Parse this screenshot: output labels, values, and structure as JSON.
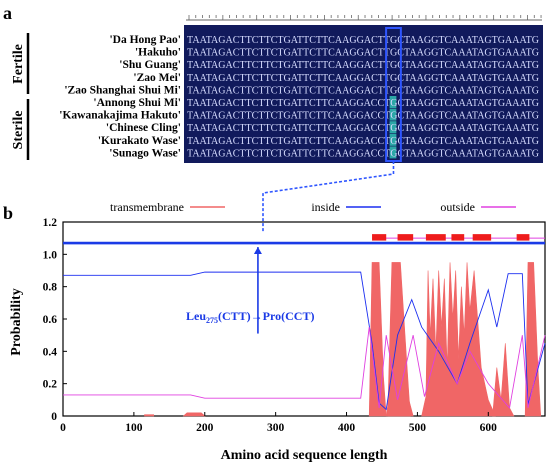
{
  "panel_a": {
    "label": "a",
    "groups": [
      {
        "name": "Fertile",
        "cultivars": [
          "'Da Hong Pao'",
          "'Hakuho'",
          "'Shu Guang'",
          "'Zao Mei'",
          "'Zao Shanghai Shui Mi'"
        ]
      },
      {
        "name": "Sterile",
        "cultivars": [
          "'Annong Shui Mi'",
          "'Kawanakajima Hakuto'",
          "'Chinese Cling'",
          "'Kurakato Wase'",
          "'Sunago Wase'"
        ]
      }
    ],
    "sequences": [
      "TAATAGACTTCTTCTGATTCTTCAAGGACTTGCTAAGGTCAAATAGTGAAATG",
      "TAATAGACTTCTTCTGATTCTTCAAGGACTTGCTAAGGTCAAATAGTGAAATG",
      "TAATAGACTTCTTCTGATTCTTCAAGGACTTGCTAAGGTCAAATAGTGAAATG",
      "TAATAGACTTCTTCTGATTCTTCAAGGACTTGCTAAGGTCAAATAGTGAAATG",
      "TAATAGACTTCTTCTGATTCTTCAAGGACTTGCTAAGGTCAAATAGTGAAATG",
      "TAATAGACTTCTTCTGATTCTTCAAGGACCTGCTAAGGTCAAATAGTGAAATG",
      "TAATAGACTTCTTCTGATTCTTCAAGGACCTGCTAAGGTCAAATAGTGAAATG",
      "TAATAGACTTCTTCTGATTCTTCAAGGACCTGCTAAGGTCAAATAGTGAAATG",
      "TAATAGACTTCTTCTGATTCTTCAAGGACCTGCTAAGGTCAAATAGTGAAATG",
      "TAATAGACTTCTTCTGATTCTTCAAGGACCTGCTAAGGTCAAATAGTGAAATG"
    ],
    "snp_column": 30,
    "colors": {
      "alignment_bg": "#111a5c",
      "base_text": "#d6dcff",
      "snp_highlight": "#2ba6a6",
      "box": "#2f56ff"
    }
  },
  "panel_b": {
    "label": "b",
    "annotation": "Leu275(CTT)→Pro(CCT)",
    "annotation_parts": {
      "pre": "Leu",
      "sub": "275",
      "post": "(CTT)→Pro(CCT)"
    },
    "chart_data": {
      "type": "area",
      "xlabel": "Amino acid sequence length",
      "ylabel": "Probability",
      "xlim": [
        0,
        680
      ],
      "ylim": [
        0,
        1.2
      ],
      "xticks": [
        0,
        100,
        200,
        300,
        400,
        500,
        600
      ],
      "yticks": [
        0,
        0.2,
        0.4,
        0.6,
        0.8,
        1.0,
        1.2
      ],
      "legend": [
        "transmembrane",
        "inside",
        "outside"
      ],
      "legend_position": "top",
      "colors": {
        "transmembrane": "#f06666",
        "inside": "#1c2ff0",
        "outside": "#e040e0",
        "top_bar_blue": "#1a3ae6",
        "outside_block": "#ee1c1c"
      },
      "inside_bar_y": 1.07,
      "mutation_x": 275,
      "outside_blocks": [
        [
          436,
          456
        ],
        [
          472,
          494
        ],
        [
          512,
          540
        ],
        [
          548,
          566
        ],
        [
          578,
          604
        ],
        [
          640,
          658
        ]
      ],
      "transmembrane_segments": [
        {
          "x": [
            115,
            128
          ],
          "y": [
            0.008,
            0.008
          ]
        },
        {
          "x": [
            170,
            175,
            195,
            200
          ],
          "y": [
            0,
            0.02,
            0.02,
            0
          ]
        },
        {
          "x": [
            432,
            436,
            446,
            452,
            456
          ],
          "y": [
            0,
            0.95,
            0.95,
            0.25,
            0
          ]
        },
        {
          "x": [
            456,
            462,
            476,
            488,
            494
          ],
          "y": [
            0,
            0.18,
            0.2,
            0.1,
            0
          ]
        },
        {
          "x": [
            458,
            464,
            476,
            484,
            490
          ],
          "y": [
            0,
            0.95,
            0.95,
            0.4,
            0
          ]
        },
        {
          "x": [
            506,
            512,
            515,
            518,
            522,
            526,
            530,
            534,
            538,
            542,
            546,
            550,
            554,
            558,
            562,
            566,
            570,
            574,
            580,
            590,
            600,
            610
          ],
          "y": [
            0,
            0.12,
            0.9,
            0.5,
            0.85,
            0.4,
            0.9,
            0.55,
            0.85,
            0.3,
            0.95,
            0.6,
            0.9,
            0.35,
            0.8,
            0.5,
            0.95,
            0.65,
            0.9,
            0.3,
            0.1,
            0
          ]
        },
        {
          "x": [
            606,
            612,
            618,
            624,
            630,
            636
          ],
          "y": [
            0,
            0.3,
            0.1,
            0.45,
            0.05,
            0
          ]
        },
        {
          "x": [
            652,
            656,
            664,
            670,
            674
          ],
          "y": [
            0,
            0.95,
            0.95,
            0.3,
            0
          ]
        }
      ],
      "inside_line": {
        "x": [
          0,
          180,
          200,
          260,
          420,
          436,
          446,
          456,
          472,
          492,
          506,
          530,
          556,
          574,
          600,
          612,
          628,
          648,
          656,
          680
        ],
        "y": [
          0.87,
          0.87,
          0.89,
          0.89,
          0.89,
          0.45,
          0.08,
          0.04,
          0.5,
          0.72,
          0.55,
          0.4,
          0.2,
          0.45,
          0.78,
          0.55,
          0.88,
          0.88,
          0.07,
          0.45
        ]
      },
      "outside_line": {
        "x": [
          0,
          180,
          200,
          420,
          432,
          446,
          456,
          472,
          494,
          510,
          530,
          556,
          574,
          600,
          630,
          648,
          656,
          680
        ],
        "y": [
          0.13,
          0.13,
          0.11,
          0.11,
          0.55,
          0.05,
          0.5,
          0.1,
          0.5,
          0.12,
          0.45,
          0.2,
          0.4,
          0.2,
          0.05,
          0.5,
          0.05,
          0.5
        ]
      }
    }
  }
}
